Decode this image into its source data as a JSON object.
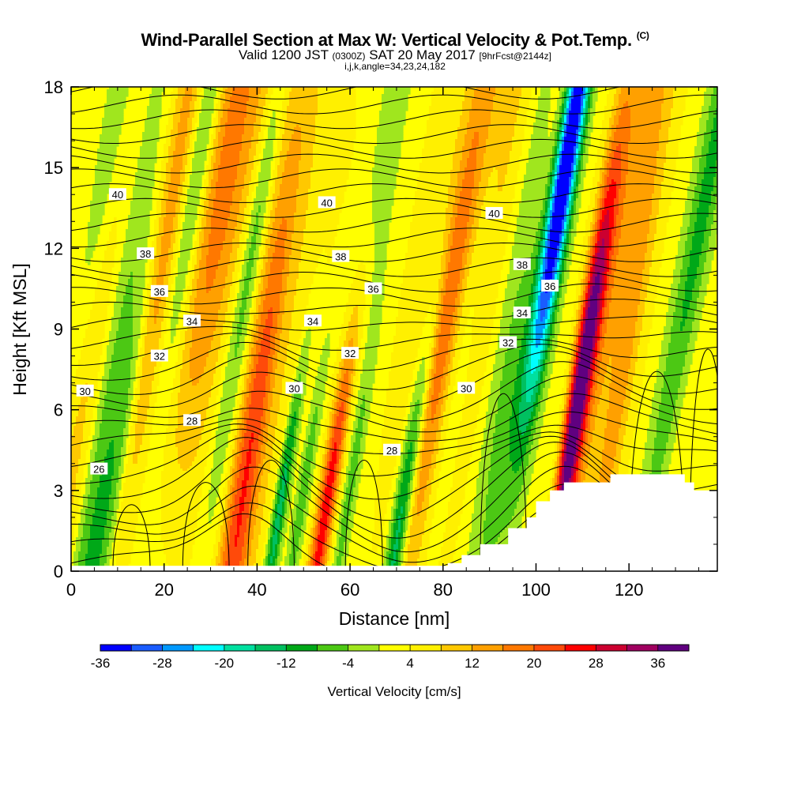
{
  "header": {
    "title": "Wind-Parallel Section at Max W: Vertical Velocity & Pot.Temp.",
    "copyright_mark": "(C)",
    "subtitle_valid": "Valid 1200 JST",
    "subtitle_utc": "(0300Z)",
    "subtitle_date": "SAT 20 May 2017",
    "subtitle_fcst": "[9hrFcst@2144z]",
    "meta": "i,j,k,angle=34,23,24,182"
  },
  "chart_data": {
    "type": "heatmap",
    "title": "Wind-Parallel Section at Max W: Vertical Velocity & Pot.Temp.",
    "xlabel": "Distance [nm]",
    "ylabel": "Height [Kft MSL]",
    "xlim": [
      0,
      139
    ],
    "ylim": [
      0,
      18
    ],
    "x_ticks": [
      0,
      20,
      40,
      60,
      80,
      100,
      120
    ],
    "y_ticks": [
      0,
      3,
      6,
      9,
      12,
      15,
      18
    ],
    "colorbar": {
      "label": "Vertical Velocity [cm/s]",
      "levels": [
        -36,
        -32,
        -28,
        -24,
        -20,
        -16,
        -12,
        -8,
        -4,
        0,
        4,
        8,
        12,
        16,
        20,
        24,
        28,
        32,
        36,
        40
      ],
      "tick_labels": [
        "-36",
        "-28",
        "-20",
        "-12",
        "-4",
        "4",
        "12",
        "20",
        "28",
        "36"
      ],
      "colors": [
        "#0000ff",
        "#1a5cff",
        "#0099ff",
        "#00ffff",
        "#00e0a0",
        "#00c060",
        "#00a818",
        "#4cc814",
        "#a0e61e",
        "#ffff00",
        "#fff000",
        "#ffc800",
        "#ffa000",
        "#ff7800",
        "#ff4a0a",
        "#ff0000",
        "#cc0030",
        "#a00060",
        "#600080"
      ]
    },
    "vertical_velocity_features": [
      {
        "x": 38,
        "y": 3.2,
        "w_cms": 24
      },
      {
        "x": 55,
        "y": 2.5,
        "w_cms": 26
      },
      {
        "x": 45,
        "y": 2.5,
        "w_cms": -18
      },
      {
        "x": 71,
        "y": 2.0,
        "w_cms": -20
      },
      {
        "x": 109,
        "y": 6.5,
        "w_cms": 38
      },
      {
        "x": 107,
        "y": 15.5,
        "w_cms": -34
      },
      {
        "x": 36,
        "y": 12.5,
        "w_cms": 12
      },
      {
        "x": 90,
        "y": 15.0,
        "w_cms": 12
      },
      {
        "x": 80,
        "y": 9.0,
        "w_cms": 12
      }
    ],
    "theta_contours": {
      "units": "K",
      "labels": [
        {
          "text": "26",
          "x": 6,
          "y": 3.8
        },
        {
          "text": "28",
          "x": 26,
          "y": 5.6
        },
        {
          "text": "28",
          "x": 69,
          "y": 4.5
        },
        {
          "text": "30",
          "x": 3,
          "y": 6.7
        },
        {
          "text": "30",
          "x": 48,
          "y": 6.8
        },
        {
          "text": "30",
          "x": 85,
          "y": 6.8
        },
        {
          "text": "32",
          "x": 19,
          "y": 8.0
        },
        {
          "text": "32",
          "x": 60,
          "y": 8.1
        },
        {
          "text": "32",
          "x": 94,
          "y": 8.5
        },
        {
          "text": "34",
          "x": 26,
          "y": 9.3
        },
        {
          "text": "34",
          "x": 52,
          "y": 9.3
        },
        {
          "text": "34",
          "x": 97,
          "y": 9.6
        },
        {
          "text": "36",
          "x": 19,
          "y": 10.4
        },
        {
          "text": "36",
          "x": 65,
          "y": 10.5
        },
        {
          "text": "36",
          "x": 103,
          "y": 10.6
        },
        {
          "text": "38",
          "x": 16,
          "y": 11.8
        },
        {
          "text": "38",
          "x": 58,
          "y": 11.7
        },
        {
          "text": "38",
          "x": 97,
          "y": 11.4
        },
        {
          "text": "40",
          "x": 10,
          "y": 14.0
        },
        {
          "text": "40",
          "x": 55,
          "y": 13.7
        },
        {
          "text": "40",
          "x": 91,
          "y": 13.3
        }
      ]
    },
    "terrain": [
      [
        79,
        0
      ],
      [
        81,
        0.3
      ],
      [
        84,
        0.6
      ],
      [
        88,
        1.0
      ],
      [
        94,
        1.6
      ],
      [
        98,
        2.0
      ],
      [
        100,
        2.6
      ],
      [
        103,
        3.0
      ],
      [
        106,
        3.3
      ],
      [
        116,
        3.6
      ],
      [
        129,
        3.6
      ],
      [
        132,
        3.3
      ],
      [
        134,
        3.0
      ],
      [
        139,
        3.0
      ]
    ]
  }
}
